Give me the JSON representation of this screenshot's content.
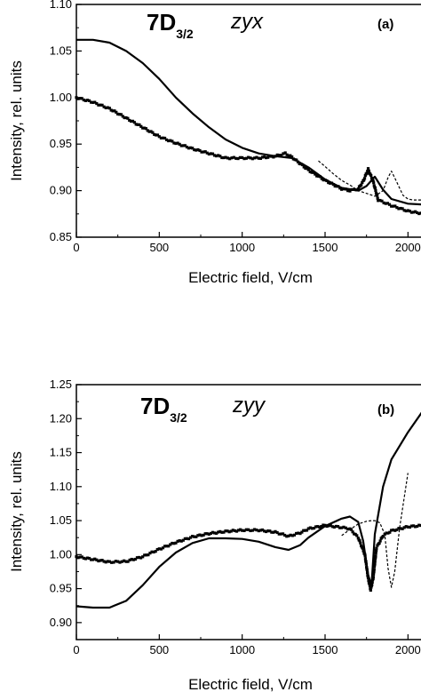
{
  "chart_data": [
    {
      "type": "line",
      "panel_label": "(a)",
      "state_main": "7D",
      "state_sub": "3/2",
      "polarization": "zyx",
      "xlabel": "Electric field, V/cm",
      "ylabel": "Intensity, rel. units",
      "xlim": [
        0,
        2100
      ],
      "ylim": [
        0.85,
        1.1
      ],
      "x_ticks": [
        "0",
        "500",
        "1000",
        "1500",
        "2000"
      ],
      "y_ticks": [
        "0.85",
        "0.90",
        "0.95",
        "1.00",
        "1.05",
        "1.10"
      ],
      "grid": false,
      "series": [
        {
          "style": "experiment-markers",
          "x": [
            0,
            100,
            200,
            300,
            400,
            500,
            600,
            700,
            800,
            900,
            1000,
            1100,
            1200,
            1260,
            1300,
            1400,
            1500,
            1600,
            1650,
            1700,
            1730,
            1760,
            1790,
            1820,
            1900,
            2000,
            2100
          ],
          "y": [
            1.0,
            0.995,
            0.988,
            0.978,
            0.968,
            0.958,
            0.951,
            0.945,
            0.94,
            0.935,
            0.935,
            0.935,
            0.937,
            0.94,
            0.936,
            0.922,
            0.911,
            0.902,
            0.9,
            0.902,
            0.91,
            0.923,
            0.91,
            0.89,
            0.884,
            0.878,
            0.875
          ]
        },
        {
          "style": "theory-solid",
          "x": [
            0,
            100,
            200,
            300,
            400,
            500,
            600,
            700,
            800,
            900,
            1000,
            1100,
            1200,
            1300,
            1400,
            1500,
            1600,
            1700,
            1750,
            1800,
            1850,
            1900,
            2000,
            2100
          ],
          "y": [
            1.062,
            1.062,
            1.059,
            1.05,
            1.037,
            1.02,
            1.0,
            0.983,
            0.968,
            0.955,
            0.946,
            0.94,
            0.937,
            0.935,
            0.925,
            0.912,
            0.903,
            0.9,
            0.905,
            0.915,
            0.901,
            0.891,
            0.886,
            0.885
          ]
        },
        {
          "style": "theory-dashed",
          "x": [
            1460,
            1500,
            1550,
            1600,
            1650,
            1700,
            1750,
            1800,
            1850,
            1880,
            1900,
            1930,
            1970,
            2000,
            2030,
            2060,
            2100
          ],
          "y": [
            0.932,
            0.926,
            0.918,
            0.911,
            0.906,
            0.9,
            0.897,
            0.894,
            0.9,
            0.914,
            0.921,
            0.91,
            0.895,
            0.891,
            0.89,
            0.89,
            0.89
          ]
        }
      ]
    },
    {
      "type": "line",
      "panel_label": "(b)",
      "state_main": "7D",
      "state_sub": "3/2",
      "polarization": "zyy",
      "xlabel": "Electric field, V/cm",
      "ylabel": "Intensity, rel. units",
      "xlim": [
        0,
        2100
      ],
      "ylim": [
        0.875,
        1.25
      ],
      "x_ticks": [
        "0",
        "500",
        "1000",
        "1500",
        "2000"
      ],
      "y_ticks": [
        "0.90",
        "0.95",
        "1.00",
        "1.05",
        "1.10",
        "1.15",
        "1.20",
        "1.25"
      ],
      "grid": false,
      "series": [
        {
          "style": "experiment-markers",
          "x": [
            0,
            100,
            200,
            300,
            400,
            500,
            600,
            700,
            800,
            900,
            1000,
            1100,
            1200,
            1280,
            1350,
            1400,
            1500,
            1600,
            1650,
            1700,
            1740,
            1760,
            1775,
            1790,
            1810,
            1850,
            1900,
            2000,
            2100
          ],
          "y": [
            0.997,
            0.993,
            0.989,
            0.99,
            0.997,
            1.008,
            1.018,
            1.026,
            1.031,
            1.034,
            1.036,
            1.036,
            1.033,
            1.027,
            1.032,
            1.038,
            1.043,
            1.04,
            1.038,
            1.025,
            1.0,
            0.965,
            0.948,
            0.965,
            1.01,
            1.028,
            1.035,
            1.041,
            1.043
          ]
        },
        {
          "style": "theory-solid",
          "x": [
            0,
            100,
            200,
            300,
            400,
            500,
            600,
            700,
            800,
            900,
            1000,
            1100,
            1200,
            1280,
            1350,
            1400,
            1500,
            1600,
            1650,
            1700,
            1730,
            1760,
            1780,
            1800,
            1850,
            1900,
            2000,
            2100
          ],
          "y": [
            0.924,
            0.922,
            0.922,
            0.932,
            0.955,
            0.982,
            1.003,
            1.017,
            1.024,
            1.024,
            1.023,
            1.019,
            1.011,
            1.007,
            1.014,
            1.025,
            1.042,
            1.053,
            1.056,
            1.048,
            1.02,
            0.97,
            0.955,
            1.03,
            1.1,
            1.14,
            1.18,
            1.215
          ]
        },
        {
          "style": "theory-dashed",
          "x": [
            1600,
            1650,
            1700,
            1750,
            1780,
            1800,
            1830,
            1860,
            1880,
            1900,
            1920,
            1950,
            2000
          ],
          "y": [
            1.028,
            1.037,
            1.045,
            1.049,
            1.05,
            1.05,
            1.047,
            1.03,
            0.98,
            0.952,
            0.975,
            1.04,
            1.12
          ]
        }
      ]
    }
  ]
}
